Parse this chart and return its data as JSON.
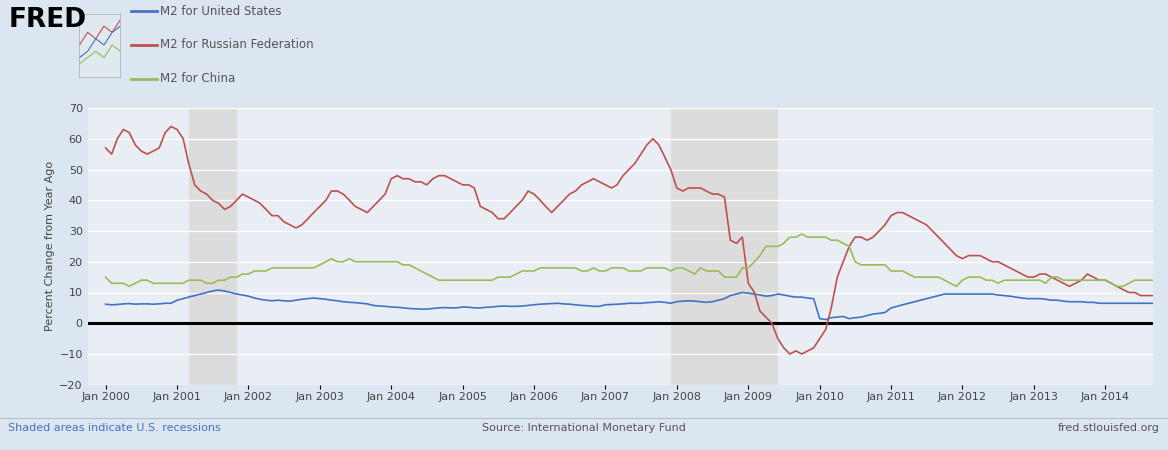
{
  "background_color": "#dce6f0",
  "plot_bg_color": "#e8eef4",
  "ylabel": "Percent Change from Year Ago",
  "ylim": [
    -20,
    70
  ],
  "yticks": [
    -20,
    -10,
    0,
    10,
    20,
    30,
    40,
    50,
    60,
    70
  ],
  "footer_left": "Shaded areas indicate U.S. recessions",
  "footer_center": "Source: International Monetary Fund",
  "footer_right": "fred.stlouisfed.org",
  "legend": [
    "M2 for United States",
    "M2 for Russian Federation",
    "M2 for China"
  ],
  "line_colors": [
    "#4472C4",
    "#C0504D",
    "#9BBB59"
  ],
  "recession_color": "#DCDCDC",
  "us_data": [
    6.2,
    6.0,
    6.1,
    6.3,
    6.4,
    6.2,
    6.3,
    6.3,
    6.2,
    6.3,
    6.5,
    6.5,
    7.5,
    8.0,
    8.5,
    9.0,
    9.5,
    10.0,
    10.5,
    10.8,
    10.5,
    10.0,
    9.5,
    9.2,
    8.8,
    8.2,
    7.8,
    7.5,
    7.3,
    7.5,
    7.3,
    7.2,
    7.5,
    7.8,
    8.0,
    8.2,
    8.0,
    7.8,
    7.5,
    7.3,
    7.0,
    6.8,
    6.7,
    6.5,
    6.3,
    5.8,
    5.6,
    5.5,
    5.3,
    5.2,
    5.0,
    4.8,
    4.7,
    4.6,
    4.6,
    4.8,
    5.0,
    5.1,
    5.0,
    5.0,
    5.3,
    5.2,
    5.0,
    5.0,
    5.2,
    5.3,
    5.5,
    5.6,
    5.5,
    5.5,
    5.6,
    5.8,
    6.0,
    6.2,
    6.3,
    6.4,
    6.5,
    6.3,
    6.2,
    6.0,
    5.8,
    5.7,
    5.5,
    5.5,
    6.0,
    6.1,
    6.2,
    6.3,
    6.5,
    6.5,
    6.5,
    6.7,
    6.8,
    7.0,
    6.8,
    6.5,
    7.0,
    7.2,
    7.3,
    7.2,
    7.0,
    6.8,
    7.0,
    7.5,
    8.0,
    9.0,
    9.5,
    10.0,
    9.8,
    9.5,
    9.2,
    8.8,
    9.0,
    9.5,
    9.2,
    8.8,
    8.5,
    8.5,
    8.2,
    8.0,
    1.5,
    1.2,
    1.8,
    2.0,
    2.2,
    1.5,
    1.8,
    2.0,
    2.5,
    3.0,
    3.2,
    3.5,
    5.0,
    5.5,
    6.0,
    6.5,
    7.0,
    7.5,
    8.0,
    8.5,
    9.0,
    9.5,
    9.5,
    9.5,
    9.5,
    9.5,
    9.5,
    9.5,
    9.5,
    9.5,
    9.2,
    9.0,
    8.8,
    8.5,
    8.2,
    8.0,
    8.0,
    8.0,
    7.8,
    7.5,
    7.5,
    7.2,
    7.0,
    7.0,
    7.0,
    6.8,
    6.8,
    6.5,
    6.5,
    6.5,
    6.5,
    6.5,
    6.5,
    6.5,
    6.5,
    6.5,
    6.5,
    6.5,
    6.5,
    6.5
  ],
  "russia_data": [
    57,
    55,
    60,
    63,
    62,
    58,
    56,
    55,
    56,
    57,
    62,
    64,
    63,
    60,
    52,
    45,
    43,
    42,
    40,
    39,
    37,
    38,
    40,
    42,
    41,
    40,
    39,
    37,
    35,
    35,
    33,
    32,
    31,
    32,
    34,
    36,
    38,
    40,
    43,
    43,
    42,
    40,
    38,
    37,
    36,
    38,
    40,
    42,
    47,
    48,
    47,
    47,
    46,
    46,
    45,
    47,
    48,
    48,
    47,
    46,
    45,
    45,
    44,
    38,
    37,
    36,
    34,
    34,
    36,
    38,
    40,
    43,
    42,
    40,
    38,
    36,
    38,
    40,
    42,
    43,
    45,
    46,
    47,
    46,
    45,
    44,
    45,
    48,
    50,
    52,
    55,
    58,
    60,
    58,
    54,
    50,
    44,
    43,
    44,
    44,
    44,
    43,
    42,
    42,
    41,
    27,
    26,
    28,
    13,
    10,
    4,
    2,
    0,
    -5,
    -8,
    -10,
    -9,
    -10,
    -9,
    -8,
    -5,
    -2,
    5,
    15,
    20,
    25,
    28,
    28,
    27,
    28,
    30,
    32,
    35,
    36,
    36,
    35,
    34,
    33,
    32,
    30,
    28,
    26,
    24,
    22,
    21,
    22,
    22,
    22,
    21,
    20,
    20,
    19,
    18,
    17,
    16,
    15,
    15,
    16,
    16,
    15,
    14,
    13,
    12,
    13,
    14,
    16,
    15,
    14,
    14,
    13,
    12,
    11,
    10,
    10,
    9,
    9,
    9,
    8,
    8,
    7
  ],
  "china_data": [
    15,
    13,
    13,
    13,
    12,
    13,
    14,
    14,
    13,
    13,
    13,
    13,
    13,
    13,
    14,
    14,
    14,
    13,
    13,
    14,
    14,
    15,
    15,
    16,
    16,
    17,
    17,
    17,
    18,
    18,
    18,
    18,
    18,
    18,
    18,
    18,
    19,
    20,
    21,
    20,
    20,
    21,
    20,
    20,
    20,
    20,
    20,
    20,
    20,
    20,
    19,
    19,
    18,
    17,
    16,
    15,
    14,
    14,
    14,
    14,
    14,
    14,
    14,
    14,
    14,
    14,
    15,
    15,
    15,
    16,
    17,
    17,
    17,
    18,
    18,
    18,
    18,
    18,
    18,
    18,
    17,
    17,
    18,
    17,
    17,
    18,
    18,
    18,
    17,
    17,
    17,
    18,
    18,
    18,
    18,
    17,
    18,
    18,
    17,
    16,
    18,
    17,
    17,
    17,
    15,
    15,
    15,
    18,
    18,
    20,
    22,
    25,
    25,
    25,
    26,
    28,
    28,
    29,
    28,
    28,
    28,
    28,
    27,
    27,
    26,
    25,
    20,
    19,
    19,
    19,
    19,
    19,
    17,
    17,
    17,
    16,
    15,
    15,
    15,
    15,
    15,
    14,
    13,
    12,
    14,
    15,
    15,
    15,
    14,
    14,
    13,
    14,
    14,
    14,
    14,
    14,
    14,
    14,
    13,
    15,
    15,
    14,
    14,
    14,
    14,
    14,
    14,
    14,
    14,
    13,
    12,
    12,
    13,
    14,
    14,
    14,
    14,
    14,
    13,
    12
  ]
}
